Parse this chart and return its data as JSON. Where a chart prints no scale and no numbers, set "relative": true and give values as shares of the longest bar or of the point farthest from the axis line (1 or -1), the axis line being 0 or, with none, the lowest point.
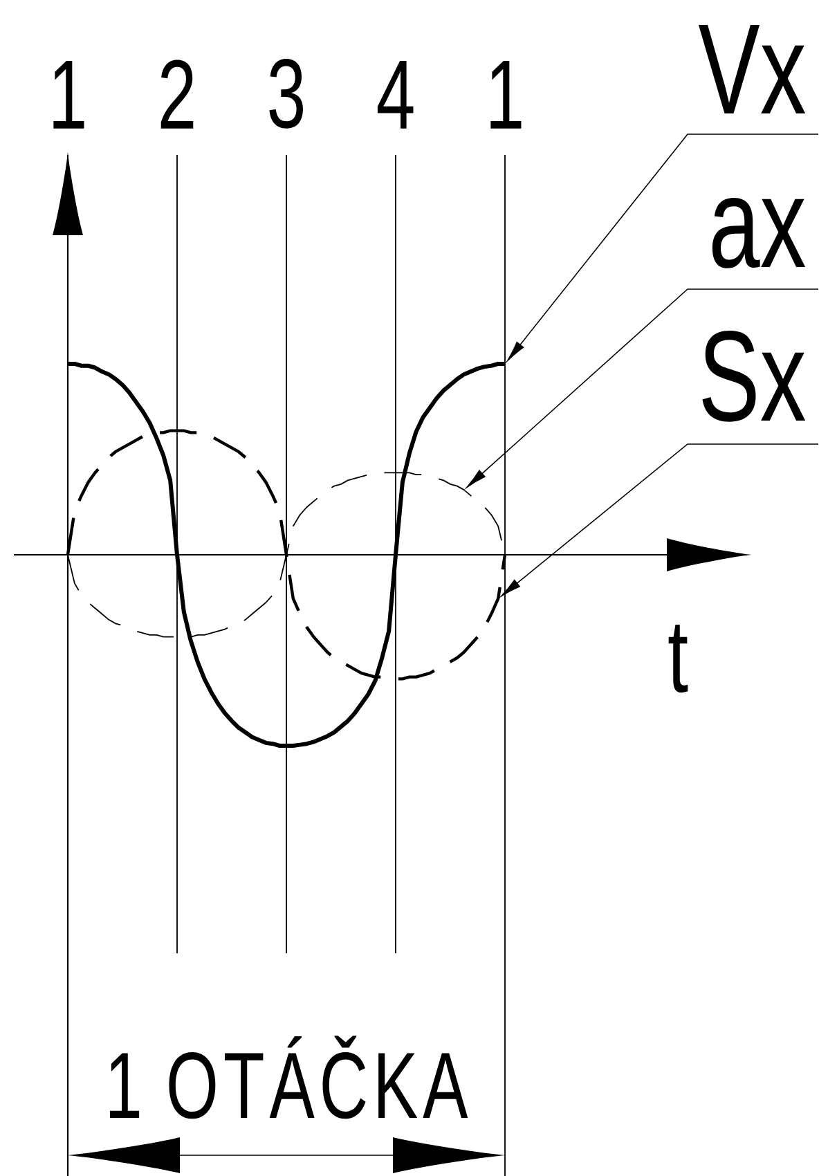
{
  "chart_data": {
    "type": "line",
    "relative": true,
    "xlabel": "t",
    "categories": [
      "1",
      null,
      null,
      null,
      null,
      null,
      null,
      null,
      null,
      null,
      null,
      null,
      null,
      null,
      null,
      null,
      "2",
      null,
      null,
      null,
      null,
      null,
      null,
      null,
      null,
      null,
      null,
      null,
      null,
      null,
      null,
      null,
      "3",
      null,
      null,
      null,
      null,
      null,
      null,
      null,
      null,
      null,
      null,
      null,
      null,
      null,
      null,
      null,
      "4",
      null,
      null,
      null,
      null,
      null,
      null,
      null,
      null,
      null,
      null,
      null,
      null,
      null,
      null,
      null,
      "1"
    ],
    "grid": "x",
    "tick_labels": "x",
    "annotations": [
      "1 OTÁČKA"
    ],
    "series": [
      {
        "name": "Vx",
        "color": "#000000",
        "line_style": "solid",
        "values": [
          1.0,
          1.0,
          0.99,
          0.99,
          0.98,
          0.96,
          0.945,
          0.92,
          0.89,
          0.85,
          0.8,
          0.75,
          0.69,
          0.61,
          0.52,
          0.39,
          0,
          -0.3,
          -0.45,
          -0.56,
          -0.65,
          -0.72,
          -0.78,
          -0.83,
          -0.87,
          -0.905,
          -0.93,
          -0.955,
          -0.97,
          -0.985,
          -0.99,
          -1.0,
          -1.0,
          -1.0,
          -0.995,
          -0.99,
          -0.98,
          -0.965,
          -0.95,
          -0.93,
          -0.9,
          -0.87,
          -0.83,
          -0.78,
          -0.73,
          -0.66,
          -0.54,
          -0.4,
          0,
          0.38,
          0.53,
          0.645,
          0.72,
          0.77,
          0.82,
          0.86,
          0.89,
          0.92,
          0.945,
          0.96,
          0.975,
          0.985,
          0.99,
          1.0,
          1.0
        ]
      },
      {
        "name": "ax",
        "color": "#000000",
        "line_style": "dashed",
        "values": [
          0,
          -0.15,
          -0.21,
          -0.25,
          -0.28,
          -0.31,
          -0.34,
          -0.36,
          -0.37,
          -0.39,
          -0.4,
          -0.41,
          -0.42,
          -0.42,
          -0.43,
          -0.43,
          -0.43,
          -0.43,
          -0.43,
          -0.42,
          -0.42,
          -0.41,
          -0.4,
          -0.39,
          -0.37,
          -0.36,
          -0.34,
          -0.31,
          -0.28,
          -0.25,
          -0.21,
          -0.15,
          0,
          0.15,
          0.21,
          0.25,
          0.28,
          0.31,
          0.34,
          0.36,
          0.37,
          0.39,
          0.4,
          0.41,
          0.42,
          0.42,
          0.43,
          0.43,
          0.43,
          0.43,
          0.43,
          0.42,
          0.42,
          0.41,
          0.4,
          0.39,
          0.37,
          0.36,
          0.34,
          0.31,
          0.28,
          0.25,
          0.21,
          0.15,
          0
        ]
      },
      {
        "name": "Sx",
        "color": "#000000",
        "line_style": "dashed",
        "values": [
          0,
          0.23,
          0.31,
          0.38,
          0.43,
          0.47,
          0.51,
          0.54,
          0.56,
          0.58,
          0.6,
          0.62,
          0.63,
          0.64,
          0.64,
          0.65,
          0.65,
          0.65,
          0.64,
          0.64,
          0.63,
          0.62,
          0.6,
          0.58,
          0.56,
          0.54,
          0.51,
          0.47,
          0.43,
          0.38,
          0.31,
          0.23,
          0,
          -0.23,
          -0.31,
          -0.38,
          -0.43,
          -0.47,
          -0.51,
          -0.54,
          -0.56,
          -0.58,
          -0.6,
          -0.62,
          -0.63,
          -0.64,
          -0.64,
          -0.65,
          -0.65,
          -0.65,
          -0.64,
          -0.64,
          -0.63,
          -0.62,
          -0.6,
          -0.58,
          -0.56,
          -0.54,
          -0.51,
          -0.47,
          -0.43,
          -0.38,
          -0.31,
          -0.23,
          0
        ]
      }
    ]
  }
}
